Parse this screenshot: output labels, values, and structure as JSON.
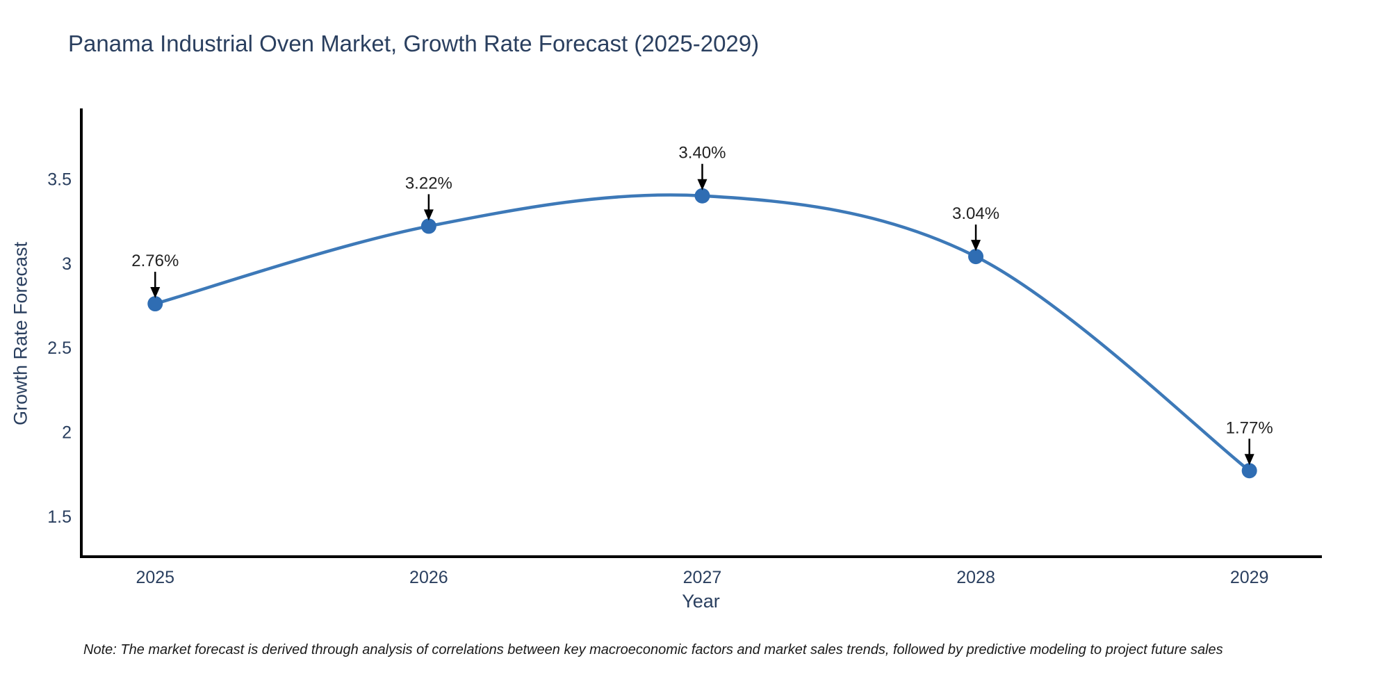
{
  "note": "Note: The market forecast is derived through analysis of correlations between key macroeconomic factors and market sales trends, followed by predictive modeling to project future sales",
  "chart_data": {
    "type": "line",
    "title": "Panama Industrial Oven Market, Growth Rate Forecast (2025-2029)",
    "xlabel": "Year",
    "ylabel": "Growth Rate Forecast",
    "x": [
      2025,
      2026,
      2027,
      2028,
      2029
    ],
    "series": [
      {
        "name": "Growth Rate Forecast",
        "values": [
          2.76,
          3.22,
          3.4,
          3.04,
          1.77
        ]
      }
    ],
    "point_labels": [
      "2.76%",
      "3.22%",
      "3.40%",
      "3.04%",
      "1.77%"
    ],
    "xtick_labels": [
      "2025",
      "2026",
      "2027",
      "2028",
      "2029"
    ],
    "yticks": [
      1.5,
      2,
      2.5,
      3,
      3.5
    ],
    "ytick_labels": [
      "1.5",
      "2",
      "2.5",
      "3",
      "3.5"
    ],
    "xlim": [
      2024.73,
      2029.26
    ],
    "ylim": [
      1.26,
      3.91
    ],
    "grid": false,
    "legend": "none",
    "line_color": "#3d79b8",
    "marker_color": "#2f6db3",
    "axis_color": "#000000",
    "text_color": "#2a3f5f",
    "annotation_text_color": "#222222",
    "arrow_color": "#000000"
  }
}
